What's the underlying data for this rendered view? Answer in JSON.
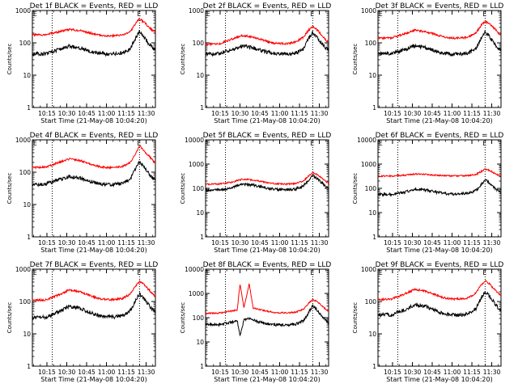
{
  "chart_data": [
    {
      "type": "line",
      "title": "Det 1f BLACK = Events, RED = LLD",
      "xlabel": "Start Time (21-May-08 10:04:20)",
      "ylabel": "Counts/sec",
      "x_ticks": [
        "10:15",
        "10:30",
        "10:45",
        "11:00",
        "11:15",
        "11:30"
      ],
      "y_ticks": [
        "1",
        "10",
        "100",
        "1000"
      ],
      "ylim": [
        1,
        1000
      ],
      "xlim_minutes": [
        0,
        93
      ],
      "yscale": "log",
      "markers": [
        "E",
        "E"
      ],
      "vlines_minutes": [
        15,
        81
      ],
      "series": [
        {
          "color": "#ff0000",
          "x": [
            0,
            10,
            20,
            28,
            36,
            44,
            50,
            56,
            62,
            68,
            74,
            78,
            81,
            84,
            88,
            91,
            93
          ],
          "y": [
            175,
            178,
            220,
            260,
            240,
            200,
            175,
            165,
            165,
            175,
            220,
            400,
            550,
            450,
            310,
            240,
            220
          ]
        },
        {
          "color": "#000000",
          "x": [
            0,
            10,
            20,
            28,
            36,
            44,
            50,
            56,
            62,
            68,
            74,
            78,
            81,
            84,
            88,
            91,
            93
          ],
          "y": [
            45,
            46,
            62,
            80,
            70,
            55,
            48,
            45,
            45,
            48,
            65,
            140,
            230,
            160,
            95,
            70,
            60
          ]
        }
      ]
    },
    {
      "type": "line",
      "title": "Det 2f BLACK = Events, RED = LLD",
      "xlabel": "Start Time (21-May-08 10:04:20)",
      "ylabel": "Counts/sec",
      "x_ticks": [
        "10:15",
        "10:30",
        "10:45",
        "11:00",
        "11:15",
        "11:30"
      ],
      "y_ticks": [
        "1",
        "10",
        "100",
        "1000"
      ],
      "ylim": [
        1,
        1000
      ],
      "xlim_minutes": [
        0,
        93
      ],
      "yscale": "log",
      "markers": [
        "E",
        "E"
      ],
      "vlines_minutes": [
        15,
        81
      ],
      "series": [
        {
          "color": "#ff0000",
          "x": [
            0,
            10,
            20,
            28,
            36,
            44,
            50,
            56,
            62,
            68,
            74,
            78,
            81,
            84,
            88,
            91,
            93
          ],
          "y": [
            90,
            92,
            130,
            170,
            150,
            120,
            100,
            95,
            95,
            105,
            150,
            250,
            320,
            260,
            170,
            120,
            105
          ]
        },
        {
          "color": "#000000",
          "x": [
            0,
            10,
            20,
            28,
            36,
            44,
            50,
            56,
            62,
            68,
            74,
            78,
            81,
            84,
            88,
            91,
            93
          ],
          "y": [
            45,
            46,
            62,
            80,
            70,
            55,
            48,
            45,
            45,
            48,
            65,
            140,
            210,
            150,
            95,
            70,
            60
          ]
        }
      ]
    },
    {
      "type": "line",
      "title": "Det 3f BLACK = Events, RED = LLD",
      "xlabel": "Start Time (21-May-08 10:04:20)",
      "ylabel": "Counts/sec",
      "x_ticks": [
        "10:15",
        "10:30",
        "10:45",
        "11:00",
        "11:15",
        "11:30"
      ],
      "y_ticks": [
        "1",
        "10",
        "100",
        "1000"
      ],
      "ylim": [
        1,
        1000
      ],
      "xlim_minutes": [
        0,
        93
      ],
      "yscale": "log",
      "markers": [
        "E",
        "E"
      ],
      "vlines_minutes": [
        15,
        81
      ],
      "series": [
        {
          "color": "#ff0000",
          "x": [
            0,
            10,
            20,
            28,
            36,
            44,
            50,
            56,
            62,
            68,
            74,
            78,
            81,
            84,
            88,
            91,
            93
          ],
          "y": [
            140,
            142,
            190,
            250,
            220,
            180,
            150,
            140,
            140,
            150,
            200,
            350,
            450,
            400,
            280,
            200,
            175
          ]
        },
        {
          "color": "#000000",
          "x": [
            0,
            10,
            20,
            28,
            36,
            44,
            50,
            56,
            62,
            68,
            74,
            78,
            81,
            84,
            88,
            91,
            93
          ],
          "y": [
            45,
            46,
            62,
            80,
            70,
            55,
            48,
            45,
            45,
            48,
            65,
            140,
            230,
            160,
            95,
            70,
            60
          ]
        }
      ]
    },
    {
      "type": "line",
      "title": "Det 4f BLACK = Events, RED = LLD",
      "xlabel": "Start Time (21-May-08 10:04:20)",
      "ylabel": "Counts/sec",
      "x_ticks": [
        "10:15",
        "10:30",
        "10:45",
        "11:00",
        "11:15",
        "11:30"
      ],
      "y_ticks": [
        "1",
        "10",
        "100",
        "1000"
      ],
      "ylim": [
        1,
        1000
      ],
      "xlim_minutes": [
        0,
        93
      ],
      "yscale": "log",
      "markers": [
        "E",
        "E"
      ],
      "vlines_minutes": [
        15,
        81
      ],
      "series": [
        {
          "color": "#ff0000",
          "x": [
            0,
            10,
            20,
            28,
            36,
            44,
            50,
            56,
            62,
            68,
            74,
            78,
            81,
            84,
            88,
            91,
            93
          ],
          "y": [
            140,
            142,
            200,
            260,
            230,
            180,
            150,
            140,
            140,
            150,
            200,
            380,
            650,
            480,
            320,
            230,
            190
          ]
        },
        {
          "color": "#000000",
          "x": [
            0,
            10,
            20,
            28,
            36,
            44,
            50,
            56,
            62,
            68,
            74,
            78,
            81,
            84,
            88,
            91,
            93
          ],
          "y": [
            42,
            43,
            58,
            75,
            65,
            52,
            45,
            42,
            42,
            45,
            60,
            130,
            210,
            150,
            90,
            65,
            55
          ]
        }
      ]
    },
    {
      "type": "line",
      "title": "Det 5f BLACK = Events, RED = LLD",
      "xlabel": "Start Time (21-May-08 10:04:20)",
      "ylabel": "Counts/sec",
      "x_ticks": [
        "10:15",
        "10:30",
        "10:45",
        "11:00",
        "11:15",
        "11:30"
      ],
      "y_ticks": [
        "1",
        "10",
        "100",
        "1000",
        "10000"
      ],
      "ylim": [
        1,
        10000
      ],
      "xlim_minutes": [
        0,
        93
      ],
      "yscale": "log",
      "markers": [
        "E",
        "E"
      ],
      "vlines_minutes": [
        15,
        81
      ],
      "series": [
        {
          "color": "#ff0000",
          "x": [
            0,
            10,
            20,
            28,
            36,
            44,
            50,
            56,
            62,
            68,
            74,
            78,
            81,
            84,
            88,
            91,
            93
          ],
          "y": [
            150,
            152,
            180,
            240,
            220,
            185,
            160,
            150,
            150,
            158,
            200,
            330,
            450,
            380,
            260,
            190,
            165
          ]
        },
        {
          "color": "#000000",
          "x": [
            0,
            10,
            20,
            28,
            36,
            44,
            50,
            56,
            62,
            68,
            74,
            78,
            81,
            84,
            88,
            91,
            93
          ],
          "y": [
            85,
            86,
            105,
            150,
            135,
            110,
            95,
            88,
            88,
            94,
            125,
            220,
            330,
            260,
            165,
            120,
            100
          ]
        }
      ]
    },
    {
      "type": "line",
      "title": "Det 6f BLACK = Events, RED = LLD",
      "xlabel": "Start Time (21-May-08 10:04:20)",
      "ylabel": "Counts/sec",
      "x_ticks": [
        "10:15",
        "10:30",
        "10:45",
        "11:00",
        "11:15",
        "11:30"
      ],
      "y_ticks": [
        "1",
        "10",
        "100",
        "1000",
        "10000"
      ],
      "ylim": [
        1,
        10000
      ],
      "xlim_minutes": [
        0,
        93
      ],
      "yscale": "log",
      "markers": [
        "E",
        "E"
      ],
      "vlines_minutes": [
        15,
        81
      ],
      "series": [
        {
          "color": "#ff0000",
          "x": [
            0,
            10,
            20,
            28,
            36,
            44,
            50,
            56,
            62,
            68,
            74,
            78,
            81,
            84,
            88,
            91,
            93
          ],
          "y": [
            320,
            322,
            345,
            390,
            375,
            350,
            335,
            330,
            330,
            340,
            370,
            500,
            620,
            560,
            420,
            350,
            330
          ]
        },
        {
          "color": "#000000",
          "x": [
            0,
            10,
            20,
            28,
            36,
            44,
            50,
            56,
            62,
            68,
            74,
            78,
            81,
            84,
            88,
            91,
            93
          ],
          "y": [
            55,
            56,
            68,
            95,
            85,
            70,
            62,
            58,
            58,
            62,
            80,
            140,
            230,
            170,
            105,
            80,
            68
          ]
        }
      ]
    },
    {
      "type": "line",
      "title": "Det 7f BLACK = Events, RED = LLD",
      "xlabel": "Start Time (21-May-08 10:04:20)",
      "ylabel": "Counts/sec",
      "x_ticks": [
        "10:15",
        "10:30",
        "10:45",
        "11:00",
        "11:15",
        "11:30"
      ],
      "y_ticks": [
        "1",
        "10",
        "100",
        "1000"
      ],
      "ylim": [
        1,
        1000
      ],
      "xlim_minutes": [
        0,
        93
      ],
      "yscale": "log",
      "markers": [
        "E",
        "E"
      ],
      "vlines_minutes": [
        15,
        81
      ],
      "series": [
        {
          "color": "#ff0000",
          "x": [
            0,
            10,
            20,
            28,
            36,
            44,
            50,
            56,
            62,
            68,
            74,
            78,
            81,
            84,
            88,
            91,
            93
          ],
          "y": [
            110,
            112,
            160,
            230,
            200,
            150,
            125,
            115,
            115,
            125,
            170,
            300,
            420,
            350,
            230,
            170,
            145
          ]
        },
        {
          "color": "#000000",
          "x": [
            0,
            10,
            20,
            28,
            36,
            44,
            50,
            56,
            62,
            68,
            74,
            78,
            81,
            84,
            88,
            91,
            93
          ],
          "y": [
            32,
            33,
            48,
            72,
            62,
            45,
            37,
            33,
            33,
            36,
            52,
            110,
            170,
            130,
            78,
            55,
            45
          ]
        }
      ]
    },
    {
      "type": "line",
      "title": "Det 8f BLACK = Events, RED = LLD",
      "xlabel": "Start Time (21-May-08 10:04:20)",
      "ylabel": "Counts/sec",
      "x_ticks": [
        "10:15",
        "10:30",
        "10:45",
        "11:00",
        "11:15",
        "11:30"
      ],
      "y_ticks": [
        "1",
        "10",
        "100",
        "1000",
        "10000"
      ],
      "ylim": [
        1,
        10000
      ],
      "xlim_minutes": [
        0,
        93
      ],
      "yscale": "log",
      "markers": [
        "E",
        "E"
      ],
      "vlines_minutes": [
        15,
        81
      ],
      "series": [
        {
          "color": "#ff0000",
          "x": [
            0,
            10,
            20,
            24,
            26,
            29,
            33,
            36,
            44,
            50,
            56,
            62,
            68,
            74,
            78,
            81,
            84,
            88,
            91,
            93
          ],
          "y": [
            150,
            155,
            190,
            210,
            2500,
            250,
            2500,
            245,
            200,
            170,
            160,
            160,
            170,
            220,
            400,
            560,
            470,
            300,
            220,
            190
          ]
        },
        {
          "color": "#000000",
          "x": [
            0,
            10,
            20,
            24,
            26,
            29,
            33,
            36,
            44,
            50,
            56,
            62,
            68,
            74,
            78,
            81,
            84,
            88,
            91,
            93
          ],
          "y": [
            50,
            52,
            65,
            72,
            18,
            80,
            95,
            78,
            60,
            52,
            50,
            50,
            54,
            75,
            170,
            300,
            220,
            110,
            75,
            60
          ]
        }
      ]
    },
    {
      "type": "line",
      "title": "Det 9f BLACK = Events, RED = LLD",
      "xlabel": "Start Time (21-May-08 10:04:20)",
      "ylabel": "Counts/sec",
      "x_ticks": [
        "10:15",
        "10:30",
        "10:45",
        "11:00",
        "11:15",
        "11:30"
      ],
      "y_ticks": [
        "1",
        "10",
        "100",
        "1000"
      ],
      "ylim": [
        1,
        1000
      ],
      "xlim_minutes": [
        0,
        93
      ],
      "yscale": "log",
      "markers": [
        "E",
        "E"
      ],
      "vlines_minutes": [
        15,
        81
      ],
      "series": [
        {
          "color": "#ff0000",
          "x": [
            0,
            10,
            20,
            28,
            36,
            44,
            50,
            56,
            62,
            68,
            74,
            78,
            81,
            84,
            88,
            91,
            93
          ],
          "y": [
            115,
            118,
            170,
            240,
            210,
            160,
            130,
            120,
            120,
            130,
            180,
            320,
            440,
            360,
            240,
            180,
            150
          ]
        },
        {
          "color": "#000000",
          "x": [
            0,
            10,
            20,
            28,
            36,
            44,
            50,
            56,
            62,
            68,
            74,
            78,
            81,
            84,
            88,
            91,
            93
          ],
          "y": [
            38,
            39,
            55,
            80,
            70,
            52,
            42,
            38,
            38,
            42,
            58,
            130,
            200,
            150,
            90,
            62,
            50
          ]
        }
      ]
    }
  ]
}
